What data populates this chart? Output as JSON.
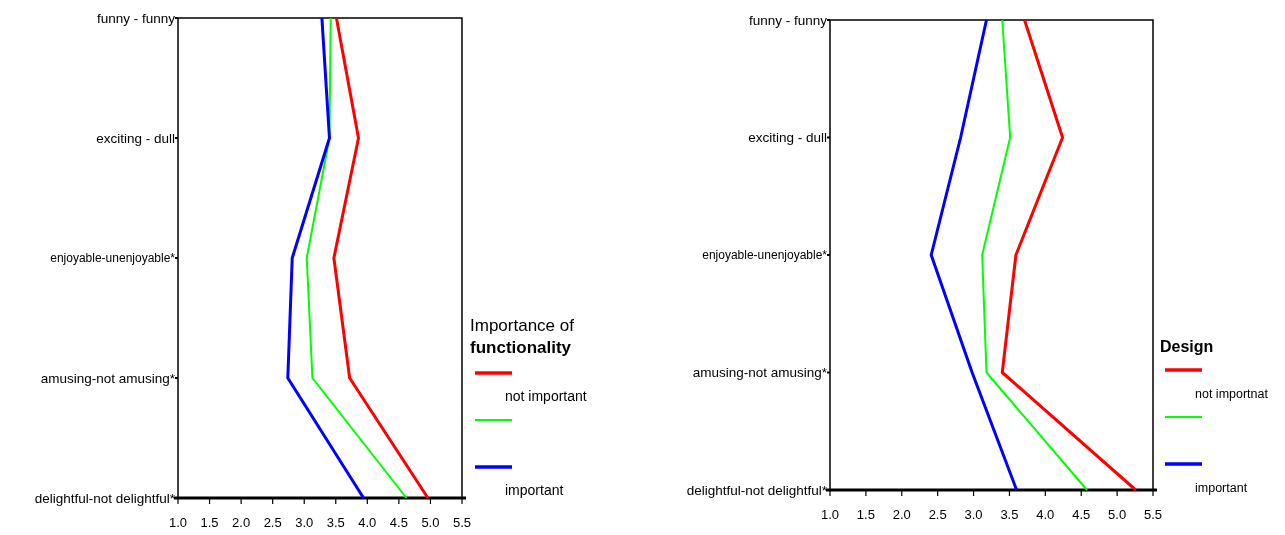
{
  "chart_data": [
    {
      "type": "line",
      "orientation": "horizontal",
      "legend_title": "Importance of functionality",
      "legend": "right",
      "categories": [
        "funny - funny",
        "exciting - dull",
        "enjoyable-unenjoyable*",
        "amusing-not amusing*",
        "delightful-not delightful*"
      ],
      "xlim": [
        1.0,
        5.5
      ],
      "xticks": [
        {
          "value": 1,
          "label": "1.0"
        },
        {
          "value": 1.5,
          "label": "1.5"
        },
        {
          "value": 2,
          "label": "2.0"
        },
        {
          "value": 2.5,
          "label": "2.5"
        },
        {
          "value": 3,
          "label": "3.0"
        },
        {
          "value": 3.5,
          "label": "3.5"
        },
        {
          "value": 4,
          "label": "4.0"
        },
        {
          "value": 4.5,
          "label": "4.5"
        },
        {
          "value": 5,
          "label": "5.0"
        },
        {
          "value": 5.5,
          "label": "5.5"
        }
      ],
      "series": [
        {
          "name": "not important",
          "color": "#ff0000",
          "values": [
            3.51,
            3.86,
            3.47,
            3.72,
            4.96
          ]
        },
        {
          "color": "#00ff00",
          "values": [
            3.42,
            3.4,
            3.04,
            3.13,
            4.62
          ]
        },
        {
          "name": "important",
          "color": "#0000ff",
          "values": [
            3.28,
            3.4,
            2.81,
            2.74,
            3.94
          ]
        }
      ]
    },
    {
      "type": "line",
      "orientation": "horizontal",
      "legend_title": "Design",
      "legend": "right",
      "categories": [
        "funny - funny",
        "exciting - dull",
        "enjoyable-unenjoyable*",
        "amusing-not amusing*",
        "delightful-not delightful*"
      ],
      "xlim": [
        1.0,
        5.5
      ],
      "xticks": [
        {
          "value": 1,
          "label": "1.0"
        },
        {
          "value": 1.5,
          "label": "1.5"
        },
        {
          "value": 2,
          "label": "2.0"
        },
        {
          "value": 2.5,
          "label": "2.5"
        },
        {
          "value": 3,
          "label": "3.0"
        },
        {
          "value": 3.5,
          "label": "3.5"
        },
        {
          "value": 4,
          "label": "4.0"
        },
        {
          "value": 4.5,
          "label": "4.5"
        },
        {
          "value": 5,
          "label": "5.0"
        },
        {
          "value": 5.5,
          "label": "5.5"
        }
      ],
      "series": [
        {
          "name": "not importnat",
          "color": "#ff0000",
          "values": [
            3.71,
            4.24,
            3.59,
            3.4,
            5.26
          ]
        },
        {
          "color": "#00ff00",
          "values": [
            3.4,
            3.51,
            3.12,
            3.18,
            4.58
          ]
        },
        {
          "name": "important",
          "color": "#0000ff",
          "values": [
            3.18,
            2.82,
            2.41,
            2.98,
            3.6
          ]
        }
      ]
    }
  ]
}
